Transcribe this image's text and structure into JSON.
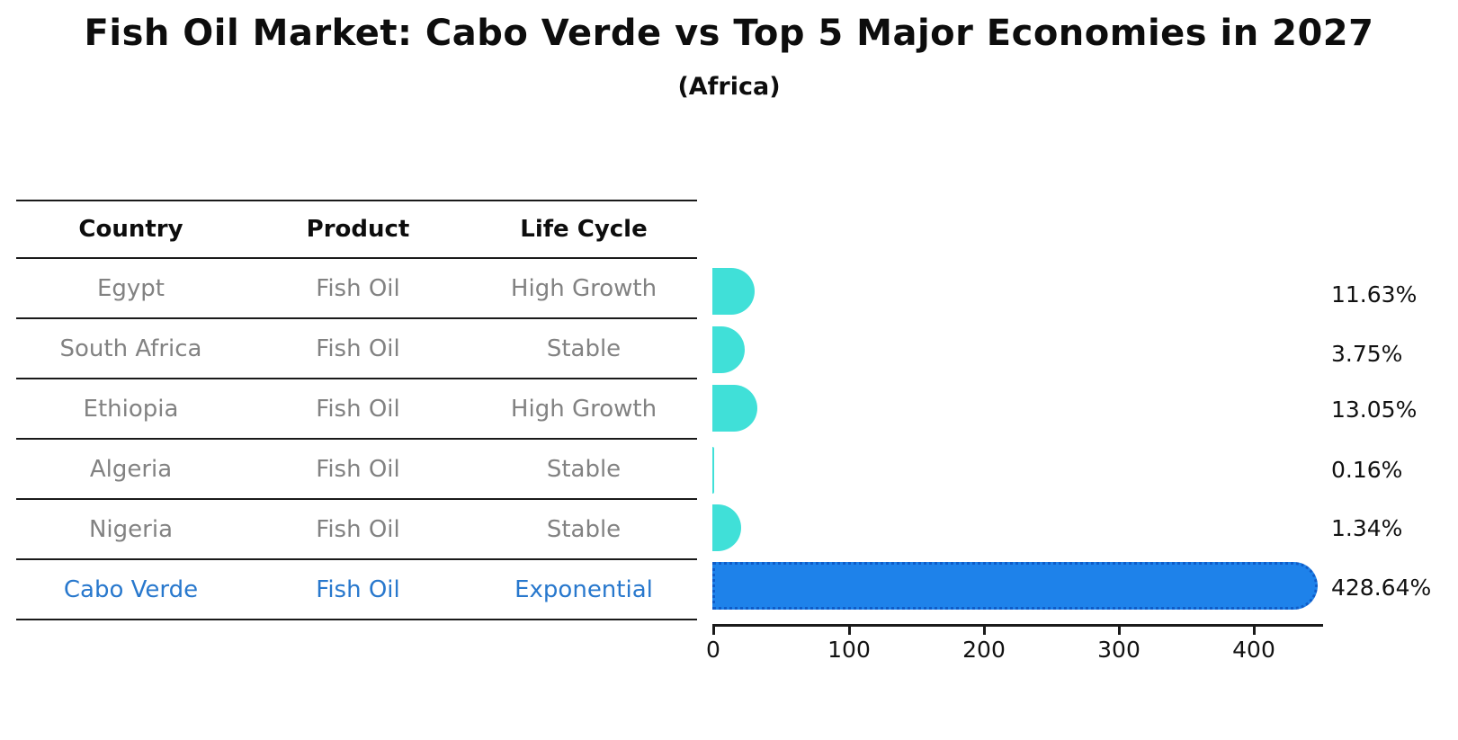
{
  "title": "Fish Oil Market: Cabo Verde vs Top 5 Major Economies in 2027",
  "subtitle": "(Africa)",
  "table": {
    "headers": [
      "Country",
      "Product",
      "Life Cycle"
    ],
    "rows": [
      {
        "country": "Egypt",
        "product": "Fish Oil",
        "life_cycle": "High Growth"
      },
      {
        "country": "South Africa",
        "product": "Fish Oil",
        "life_cycle": "Stable"
      },
      {
        "country": "Ethiopia",
        "product": "Fish Oil",
        "life_cycle": "High Growth"
      },
      {
        "country": "Algeria",
        "product": "Fish Oil",
        "life_cycle": "Stable"
      },
      {
        "country": "Nigeria",
        "product": "Fish Oil",
        "life_cycle": "Stable"
      },
      {
        "country": "Cabo Verde",
        "product": "Fish Oil",
        "life_cycle": "Exponential"
      }
    ]
  },
  "chart_data": {
    "type": "bar",
    "orientation": "horizontal",
    "categories": [
      "Egypt",
      "South Africa",
      "Ethiopia",
      "Algeria",
      "Nigeria",
      "Cabo Verde"
    ],
    "values": [
      11.63,
      3.75,
      13.05,
      0.16,
      1.34,
      428.64
    ],
    "value_labels": [
      "11.63%",
      "3.75%",
      "13.05%",
      "0.16%",
      "1.34%",
      "428.64%"
    ],
    "highlight_index": 5,
    "x_ticks": [
      0,
      100,
      200,
      300,
      400
    ],
    "xlim": [
      0,
      452
    ],
    "grid": false,
    "legend": "none",
    "bar_color": "#40e0d8",
    "highlight_bar_color": "#1e82ea",
    "highlight_text_color": "#2878cd",
    "unit": "percent"
  }
}
